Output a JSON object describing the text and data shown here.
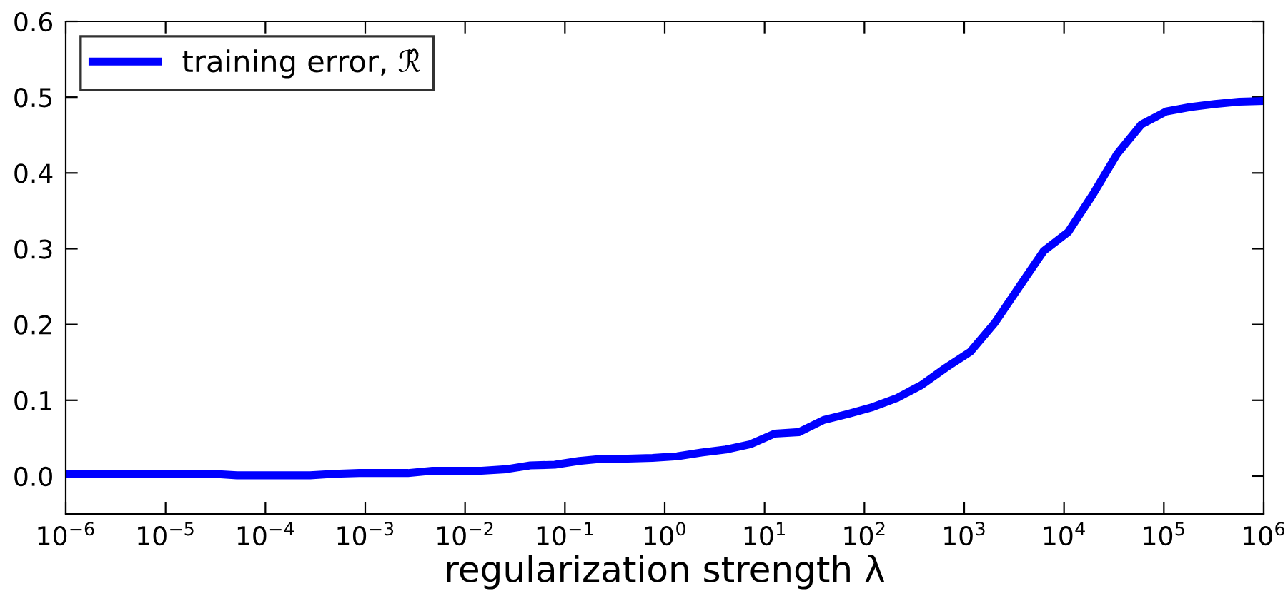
{
  "chart_data": {
    "type": "line",
    "xlabel": "regularization strength λ",
    "x": [
      1e-06,
      1.76e-06,
      3.09e-06,
      5.43e-06,
      9.54e-06,
      1.68e-05,
      2.95e-05,
      5.18e-05,
      9.1e-05,
      0.00016,
      0.000281,
      0.000494,
      0.000869,
      0.00153,
      0.00268,
      0.00471,
      0.00829,
      0.0146,
      0.0256,
      0.045,
      0.0791,
      0.139,
      0.244,
      0.429,
      0.754,
      1.33,
      2.33,
      4.09,
      7.2,
      12.6,
      22.2,
      39.1,
      68.7,
      121,
      212,
      373,
      655,
      1150,
      2020,
      3560,
      6250,
      11000,
      19300,
      34000,
      59600,
      105000,
      184000,
      324000,
      569000,
      1000000
    ],
    "series": [
      {
        "name": "training error, ℛ̂",
        "color": "#0000ff",
        "values": [
          0.003,
          0.003,
          0.003,
          0.003,
          0.003,
          0.003,
          0.003,
          0.001,
          0.001,
          0.001,
          0.001,
          0.003,
          0.004,
          0.004,
          0.004,
          0.007,
          0.007,
          0.007,
          0.009,
          0.014,
          0.015,
          0.02,
          0.023,
          0.023,
          0.024,
          0.026,
          0.031,
          0.035,
          0.042,
          0.056,
          0.058,
          0.074,
          0.082,
          0.091,
          0.103,
          0.12,
          0.143,
          0.164,
          0.202,
          0.25,
          0.297,
          0.322,
          0.371,
          0.425,
          0.464,
          0.481,
          0.487,
          0.491,
          0.494,
          0.495
        ]
      }
    ],
    "log": "x",
    "xlim": [
      1e-06,
      1000000
    ],
    "xticks": [
      {
        "value": 1e-06,
        "label": "10$^{−6}$"
      },
      {
        "value": 1e-05,
        "label": "10$^{−5}$"
      },
      {
        "value": 0.0001,
        "label": "10$^{−4}$"
      },
      {
        "value": 0.001,
        "label": "10$^{−3}$"
      },
      {
        "value": 0.01,
        "label": "10$^{−2}$"
      },
      {
        "value": 0.1,
        "label": "10$^{−1}$"
      },
      {
        "value": 1,
        "label": "10$^{0}$"
      },
      {
        "value": 10,
        "label": "10$^{1}$"
      },
      {
        "value": 100,
        "label": "10$^{2}$"
      },
      {
        "value": 1000,
        "label": "10$^{3}$"
      },
      {
        "value": 10000,
        "label": "10$^{4}$"
      },
      {
        "value": 100000,
        "label": "10$^{5}$"
      },
      {
        "value": 1000000,
        "label": "10$^{6}$"
      }
    ],
    "ylim": [
      -0.05,
      0.6
    ],
    "yticks": [
      {
        "value": 0,
        "label": "0.0"
      },
      {
        "value": 0.1,
        "label": "0.1"
      },
      {
        "value": 0.2,
        "label": "0.2"
      },
      {
        "value": 0.3,
        "label": "0.3"
      },
      {
        "value": 0.4,
        "label": "0.4"
      },
      {
        "value": 0.5,
        "label": "0.5"
      },
      {
        "value": 0.6,
        "label": "0.6"
      }
    ],
    "legend": "top left",
    "grid": false,
    "line_style": "solid",
    "marker": "none"
  }
}
